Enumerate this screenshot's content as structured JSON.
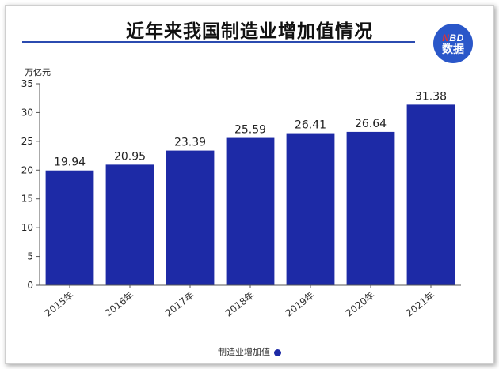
{
  "logo": {
    "brand_prefix": "N",
    "brand_rest": "BD",
    "sub": "数据"
  },
  "chart_data": {
    "type": "bar",
    "title": "近年来我国制造业增加值情况",
    "ylabel": "万亿元",
    "categories": [
      "2015年",
      "2016年",
      "2017年",
      "2018年",
      "2019年",
      "2020年",
      "2021年"
    ],
    "series": [
      {
        "name": "制造业增加值",
        "values": [
          19.94,
          20.95,
          23.39,
          25.59,
          26.41,
          26.64,
          31.38
        ],
        "labels": [
          "19.94",
          "20.95",
          "23.39",
          "25.59",
          "26.41",
          "26.64",
          "31.38"
        ]
      }
    ],
    "ylim": [
      0,
      35
    ],
    "yticks": [
      0,
      5,
      10,
      15,
      20,
      25,
      30,
      35
    ],
    "grid": false,
    "legend": "bottom-center",
    "colors": {
      "bar": "#1d2aa6",
      "title_rule": "#2b4bb0"
    }
  }
}
